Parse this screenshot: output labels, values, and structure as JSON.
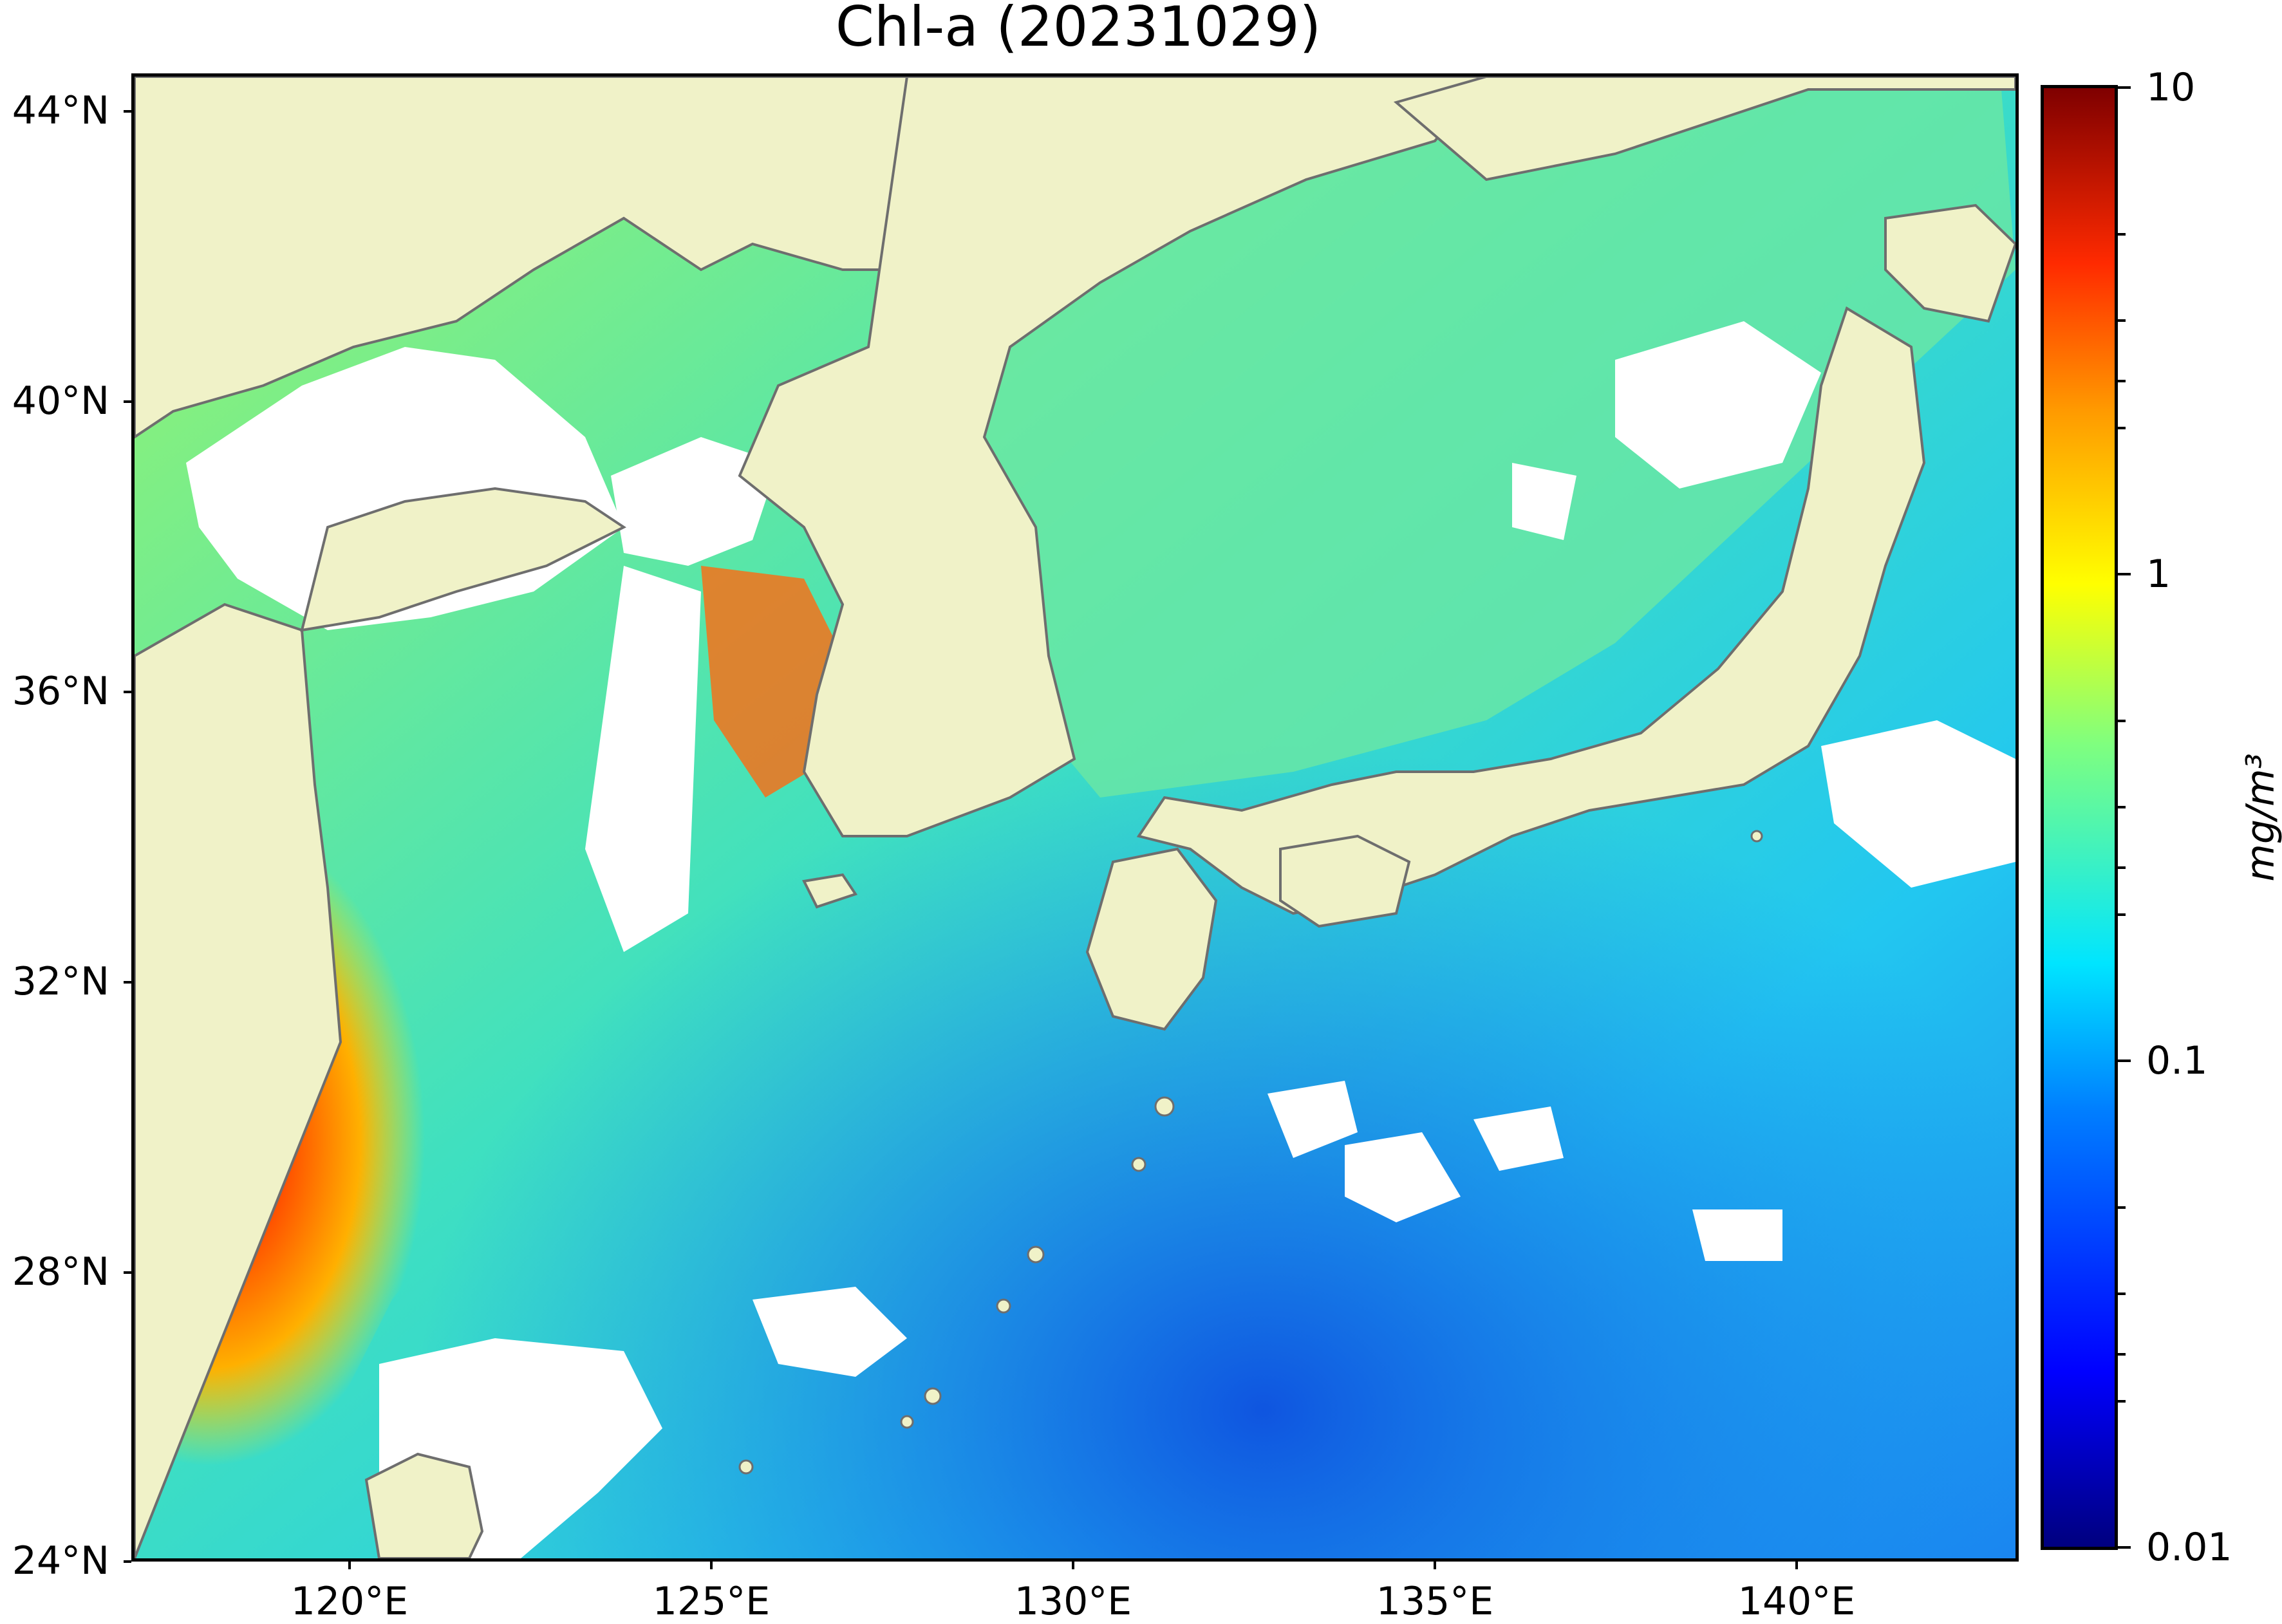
{
  "title": "Chl-a (20231029)",
  "map": {
    "projection": "equirectangular",
    "lon_range": [
      117,
      143
    ],
    "lat_range": [
      24,
      44.5
    ],
    "land_color": "#f0f2c8",
    "no_data_color": "#ffffff",
    "coastline_color": "#6e6e6e",
    "lat_ticks": [
      {
        "value": 44,
        "label": "44°N"
      },
      {
        "value": 40,
        "label": "40°N"
      },
      {
        "value": 36,
        "label": "36°N"
      },
      {
        "value": 32,
        "label": "32°N"
      },
      {
        "value": 28,
        "label": "28°N"
      },
      {
        "value": 24,
        "label": "24°N"
      }
    ],
    "lon_ticks": [
      {
        "value": 120,
        "label": "120°E"
      },
      {
        "value": 125,
        "label": "125°E"
      },
      {
        "value": 130,
        "label": "130°E"
      },
      {
        "value": 135,
        "label": "135°E"
      },
      {
        "value": 140,
        "label": "140°E"
      }
    ]
  },
  "colorbar": {
    "scale": "log",
    "min": 0.01,
    "max": 10,
    "colormap": "jet",
    "unit": "mg/m³",
    "ticks": [
      {
        "value": 10,
        "label": "10"
      },
      {
        "value": 1,
        "label": "1"
      },
      {
        "value": 0.1,
        "label": "0.1"
      },
      {
        "value": 0.01,
        "label": "0.01"
      }
    ]
  }
}
